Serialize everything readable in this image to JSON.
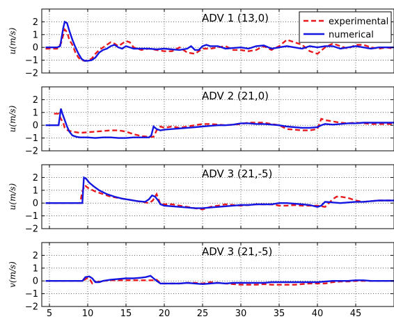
{
  "colors": {
    "experimental": "#e8191d",
    "numerical": "#1316e0"
  },
  "legend": {
    "placement": "top-right",
    "entries": [
      "experimental",
      "numerical"
    ]
  },
  "chart_data": [
    {
      "type": "line",
      "title": "ADV 1 (13,0)",
      "ylabel": "u(m/s)",
      "xlabel": "",
      "xlim": [
        4,
        50
      ],
      "ylim": [
        -2,
        3
      ],
      "xticks": [
        5,
        10,
        15,
        20,
        25,
        30,
        35,
        40,
        45
      ],
      "yticks": [
        -2,
        -1,
        0,
        1,
        2
      ],
      "grid": true,
      "series": [
        {
          "name": "experimental",
          "x": [
            4.5,
            6,
            6.5,
            7,
            7.3,
            7.6,
            8,
            8.4,
            8.8,
            9.2,
            9.6,
            10,
            10.5,
            11,
            11.5,
            12,
            12.5,
            13,
            13.5,
            14,
            14.5,
            15,
            15.5,
            16,
            16.5,
            17,
            18,
            19,
            20,
            21,
            22,
            23,
            24,
            25,
            26,
            27,
            28,
            29,
            30,
            31,
            32,
            33,
            34,
            35,
            36,
            37,
            38,
            39,
            40,
            41,
            42,
            43,
            44,
            45,
            46,
            47,
            48,
            49,
            50
          ],
          "y": [
            -0.1,
            -0.1,
            0.3,
            1.4,
            1.2,
            0.6,
            0.2,
            -0.4,
            -0.8,
            -1.0,
            -1.05,
            -1.0,
            -0.9,
            -0.5,
            -0.2,
            0.0,
            0.2,
            0.4,
            0.3,
            0.1,
            0.3,
            0.5,
            0.4,
            0.0,
            -0.1,
            -0.2,
            -0.1,
            -0.2,
            -0.3,
            -0.3,
            0.0,
            -0.4,
            -0.5,
            -0.1,
            -0.1,
            0.0,
            0.1,
            -0.2,
            -0.2,
            -0.3,
            -0.2,
            0.1,
            -0.2,
            0.1,
            0.6,
            0.4,
            0.2,
            -0.3,
            -0.5,
            0.0,
            0.3,
            0.1,
            -0.1,
            0.2,
            0.2,
            0.0,
            -0.1,
            0.0,
            -0.1
          ]
        },
        {
          "name": "numerical",
          "x": [
            4.5,
            6,
            6.4,
            6.8,
            7.0,
            7.3,
            7.6,
            8,
            8.4,
            8.8,
            9.2,
            9.6,
            10,
            10.5,
            11,
            11.5,
            12,
            12.5,
            13,
            13.5,
            14,
            14.5,
            15,
            16,
            17,
            18,
            19,
            20,
            21,
            22,
            23,
            23.5,
            24,
            24.5,
            25,
            25.5,
            26,
            27,
            28,
            29,
            30,
            31,
            32,
            33,
            34,
            35,
            36,
            37,
            38,
            39,
            40,
            41,
            42,
            43,
            44,
            45,
            46,
            47,
            48,
            49,
            50
          ],
          "y": [
            0.0,
            0.0,
            0.1,
            1.5,
            2.0,
            1.9,
            1.3,
            0.6,
            0.0,
            -0.5,
            -0.9,
            -1.05,
            -1.05,
            -1.0,
            -0.8,
            -0.4,
            -0.2,
            -0.1,
            0.1,
            0.2,
            0.0,
            -0.1,
            0.1,
            -0.1,
            -0.1,
            -0.1,
            -0.15,
            -0.1,
            -0.15,
            -0.2,
            -0.1,
            0.1,
            -0.2,
            -0.2,
            0.1,
            0.2,
            0.1,
            0.1,
            -0.1,
            -0.05,
            0.0,
            -0.1,
            0.1,
            0.15,
            -0.1,
            0.0,
            0.1,
            0.0,
            -0.1,
            0.1,
            0.0,
            0.1,
            0.1,
            -0.1,
            0.0,
            0.1,
            0.0,
            -0.1,
            0.0,
            0.0,
            0.0
          ]
        }
      ]
    },
    {
      "type": "line",
      "title": "ADV 2  (21,0)",
      "ylabel": "u(m/s)",
      "xlabel": "",
      "xlim": [
        4,
        50
      ],
      "ylim": [
        -2,
        3
      ],
      "xticks": [
        5,
        10,
        15,
        20,
        25,
        30,
        35,
        40,
        45
      ],
      "yticks": [
        -2,
        -1,
        0,
        1,
        2
      ],
      "grid": true,
      "series": [
        {
          "name": "experimental",
          "x": [
            4.5,
            5.6,
            6.2,
            6.5,
            6.8,
            7.0,
            7.4,
            8,
            9,
            10,
            11,
            12,
            13,
            14,
            15,
            16,
            17,
            18,
            18.3,
            18.6,
            19,
            19.5,
            20,
            21,
            22,
            23,
            24,
            25,
            26,
            27,
            28,
            29,
            30,
            31,
            32,
            33,
            34,
            35,
            36,
            37,
            38,
            39,
            40,
            40.5,
            41,
            42,
            43,
            44,
            45,
            46,
            47,
            48,
            49,
            50
          ],
          "y": [
            null,
            0.9,
            0.9,
            0.5,
            0.2,
            -0.2,
            -0.4,
            -0.5,
            -0.6,
            -0.55,
            -0.5,
            -0.45,
            -0.4,
            -0.4,
            -0.5,
            -0.7,
            -0.85,
            -0.9,
            -0.9,
            -0.9,
            -0.4,
            -0.1,
            -0.2,
            -0.1,
            -0.2,
            -0.1,
            0.0,
            0.1,
            0.1,
            0.05,
            0.0,
            0.05,
            0.1,
            0.2,
            0.2,
            0.2,
            0.1,
            0.0,
            -0.3,
            -0.35,
            -0.4,
            -0.4,
            -0.3,
            0.5,
            0.4,
            0.3,
            0.2,
            0.15,
            0.2,
            0.15,
            0.1,
            0.1,
            0.1,
            0.1
          ]
        },
        {
          "name": "numerical",
          "x": [
            4.5,
            6.2,
            6.5,
            6.7,
            7.0,
            7.3,
            7.6,
            8,
            8.5,
            9,
            10,
            11,
            12,
            13,
            14,
            15,
            16,
            17,
            18,
            18.3,
            18.6,
            19,
            19.5,
            20,
            21,
            22,
            23,
            24,
            25,
            26,
            27,
            28,
            29,
            30,
            31,
            32,
            33,
            34,
            35,
            36,
            37,
            38,
            39,
            40,
            40.5,
            41,
            42,
            43,
            44,
            45,
            46,
            47,
            48,
            49,
            50
          ],
          "y": [
            0.0,
            0.0,
            1.3,
            0.9,
            0.4,
            -0.1,
            -0.5,
            -0.8,
            -0.9,
            -0.95,
            -0.95,
            -1.0,
            -0.95,
            -0.95,
            -1.0,
            -1.0,
            -0.95,
            -0.95,
            -0.95,
            -0.8,
            -0.1,
            -0.3,
            -0.4,
            -0.35,
            -0.3,
            -0.25,
            -0.2,
            -0.15,
            -0.1,
            -0.05,
            0.0,
            0.0,
            0.05,
            0.15,
            0.15,
            0.1,
            0.1,
            0.05,
            0.0,
            -0.1,
            -0.15,
            -0.2,
            -0.2,
            -0.15,
            0.0,
            0.1,
            0.05,
            0.1,
            0.15,
            0.15,
            0.2,
            0.2,
            0.2,
            0.2,
            0.2
          ]
        }
      ]
    },
    {
      "type": "line",
      "title": "ADV 3  (21,-5)",
      "ylabel": "u(m/s)",
      "xlabel": "",
      "xlim": [
        4,
        50
      ],
      "ylim": [
        -2,
        3
      ],
      "xticks": [
        5,
        10,
        15,
        20,
        25,
        30,
        35,
        40,
        45
      ],
      "yticks": [
        -2,
        -1,
        0,
        1,
        2
      ],
      "grid": true,
      "series": [
        {
          "name": "experimental",
          "x": [
            4.5,
            9.0,
            9.3,
            9.6,
            10,
            11,
            12,
            13,
            14,
            15,
            16,
            17,
            18,
            18.5,
            19,
            19.5,
            20,
            21,
            22,
            23,
            24,
            25,
            26,
            27,
            28,
            29,
            30,
            31,
            32,
            33,
            34,
            35,
            36,
            37,
            38,
            39,
            40,
            41,
            42,
            42.5,
            43,
            44,
            45,
            46,
            47,
            48,
            49,
            50
          ],
          "y": [
            0.0,
            0.0,
            0.9,
            1.4,
            1.2,
            0.9,
            0.7,
            0.5,
            0.4,
            0.3,
            0.2,
            0.1,
            0.0,
            0.2,
            0.7,
            -0.1,
            -0.1,
            -0.1,
            -0.2,
            -0.3,
            -0.4,
            -0.5,
            -0.3,
            -0.2,
            -0.1,
            -0.15,
            -0.2,
            -0.15,
            -0.1,
            -0.1,
            -0.1,
            -0.2,
            -0.2,
            -0.15,
            -0.2,
            -0.2,
            -0.2,
            -0.3,
            0.3,
            0.5,
            0.5,
            0.4,
            0.2,
            0.1,
            0.15,
            0.2,
            0.2,
            0.2
          ]
        },
        {
          "name": "numerical",
          "x": [
            4.5,
            9.3,
            9.5,
            9.8,
            10.2,
            10.8,
            11.5,
            12.5,
            13.5,
            14.5,
            15.5,
            16.5,
            17.5,
            18,
            18.4,
            18.8,
            19.2,
            19.5,
            20,
            21,
            22,
            23,
            24,
            25,
            26,
            27,
            28,
            29,
            30,
            31,
            32,
            33,
            34,
            35,
            36,
            37,
            38,
            39,
            40,
            40.5,
            41,
            42,
            43,
            44,
            45,
            46,
            47,
            48,
            49,
            50
          ],
          "y": [
            0.0,
            0.0,
            2.0,
            1.9,
            1.6,
            1.3,
            1.0,
            0.7,
            0.5,
            0.35,
            0.25,
            0.15,
            0.1,
            0.3,
            0.6,
            0.5,
            0.2,
            -0.1,
            -0.2,
            -0.25,
            -0.3,
            -0.35,
            -0.4,
            -0.4,
            -0.35,
            -0.3,
            -0.25,
            -0.2,
            -0.15,
            -0.15,
            -0.1,
            -0.1,
            -0.1,
            0.0,
            0.0,
            -0.05,
            -0.1,
            -0.15,
            -0.3,
            -0.2,
            0.1,
            0.05,
            0.0,
            0.05,
            0.1,
            0.1,
            0.15,
            0.2,
            0.2,
            0.2
          ]
        }
      ]
    },
    {
      "type": "line",
      "title": "ADV 3  (21,-5)",
      "ylabel": "v(m/s)",
      "xlabel": "",
      "xlim": [
        4,
        50
      ],
      "ylim": [
        -2,
        3
      ],
      "xticks": [
        5,
        10,
        15,
        20,
        25,
        30,
        35,
        40,
        45
      ],
      "yticks": [
        -2,
        -1,
        0,
        1,
        2
      ],
      "grid": true,
      "series": [
        {
          "name": "experimental",
          "x": [
            4.5,
            9.3,
            9.6,
            10,
            10.3,
            10.6,
            11,
            12,
            13,
            14,
            15,
            16,
            17,
            18,
            18.5,
            19,
            19.5,
            20,
            21,
            22,
            23,
            24,
            25,
            26,
            27,
            28,
            29,
            30,
            31,
            32,
            33,
            34,
            35,
            36,
            37,
            38,
            39,
            40,
            41,
            42,
            43,
            44,
            45,
            46,
            47,
            48,
            49,
            50
          ],
          "y": [
            0.0,
            0.0,
            0.1,
            0.25,
            0.1,
            -0.2,
            -0.1,
            0.0,
            0.05,
            0.05,
            0.05,
            0.05,
            0.05,
            0.05,
            0.05,
            0.1,
            -0.2,
            -0.2,
            -0.2,
            -0.2,
            -0.15,
            -0.15,
            -0.2,
            -0.1,
            -0.15,
            -0.2,
            -0.25,
            -0.3,
            -0.3,
            -0.3,
            -0.25,
            -0.3,
            -0.3,
            -0.3,
            -0.3,
            -0.25,
            -0.2,
            -0.2,
            -0.2,
            -0.1,
            -0.05,
            -0.05,
            0.0,
            0.0,
            0.0,
            0.0,
            0.0,
            0.0
          ]
        },
        {
          "name": "numerical",
          "x": [
            4.5,
            9.3,
            9.7,
            10.2,
            10.6,
            11.0,
            11.5,
            12,
            13,
            14,
            15,
            16,
            17,
            17.6,
            18.2,
            18.6,
            19,
            19.5,
            20,
            21,
            22,
            23,
            24,
            25,
            26,
            27,
            28,
            29,
            30,
            31,
            32,
            33,
            34,
            35,
            36,
            37,
            38,
            39,
            40,
            41,
            42,
            43,
            44,
            45,
            46,
            47,
            48,
            49,
            50
          ],
          "y": [
            0.0,
            0.0,
            0.3,
            0.35,
            0.2,
            -0.1,
            -0.1,
            0.0,
            0.1,
            0.15,
            0.2,
            0.2,
            0.25,
            0.3,
            0.4,
            0.2,
            0.0,
            -0.2,
            -0.2,
            -0.2,
            -0.2,
            -0.15,
            -0.2,
            -0.25,
            -0.2,
            -0.15,
            -0.2,
            -0.15,
            -0.15,
            -0.15,
            -0.15,
            -0.15,
            -0.1,
            -0.1,
            -0.1,
            -0.1,
            -0.1,
            -0.1,
            -0.1,
            -0.05,
            0.0,
            0.0,
            0.0,
            0.05,
            0.05,
            0.0,
            0.0,
            0.0,
            0.0
          ]
        }
      ]
    }
  ]
}
